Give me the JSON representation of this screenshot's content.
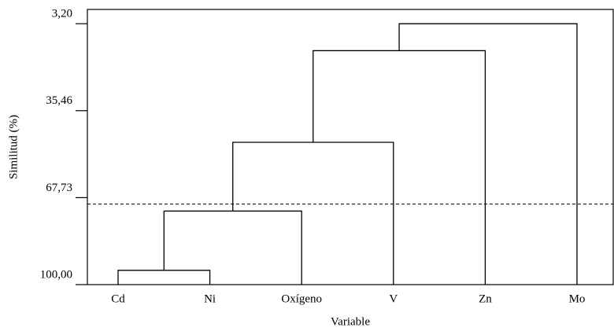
{
  "chart_data": {
    "type": "dendrogram",
    "ylabel": "Similitud (%)",
    "xlabel": "Variable",
    "categories": [
      "Cd",
      "Ni",
      "Oxígeno",
      "V",
      "Zn",
      "Mo"
    ],
    "merges": [
      {
        "a": 0,
        "b": 1,
        "similarity": 94.7
      },
      {
        "a": 6,
        "b": 2,
        "similarity": 72.7
      },
      {
        "a": 7,
        "b": 3,
        "similarity": 47.2
      },
      {
        "a": 8,
        "b": 4,
        "similarity": 13.2
      },
      {
        "a": 9,
        "b": 5,
        "similarity": 3.2
      }
    ],
    "cut_line": 70.1,
    "ylim": [
      100,
      -2.1
    ],
    "yticks": [
      {
        "value": 3.2,
        "label": "3,20"
      },
      {
        "value": 35.46,
        "label": "35,46"
      },
      {
        "value": 67.73,
        "label": "67,73"
      },
      {
        "value": 100,
        "label": "100,00"
      }
    ],
    "color": "#000000"
  }
}
